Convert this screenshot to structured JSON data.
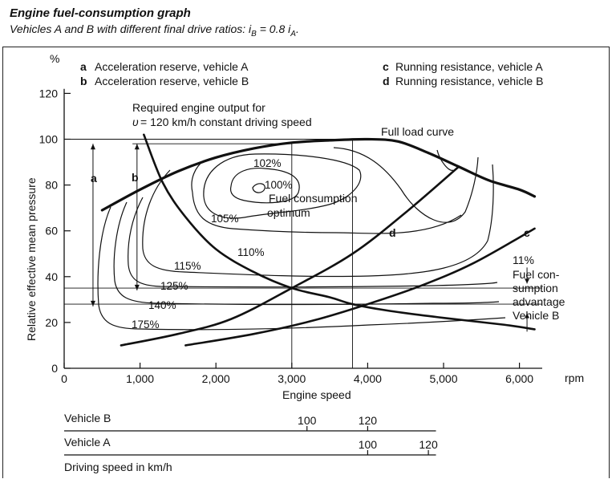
{
  "header": {
    "title": "Engine fuel-consumption graph",
    "subtitle_prefix": "Vehicles A and B with different final drive ratios: ",
    "subtitle_formula": "i",
    "subtitle_sub1": "B",
    "subtitle_eq": " = 0.8 i",
    "subtitle_sub2": "A",
    "subtitle_end": "."
  },
  "legend": {
    "a": {
      "key": "a",
      "text": "Acceleration reserve, vehicle A"
    },
    "b": {
      "key": "b",
      "text": "Acceleration reserve, vehicle B"
    },
    "c": {
      "key": "c",
      "text": "Running resistance, vehicle A"
    },
    "d": {
      "key": "d",
      "text": "Running resistance, vehicle B"
    }
  },
  "annotations": {
    "required_line1": "Required engine output for",
    "required_v": "υ",
    "required_line2": " = 120 km/h constant driving speed",
    "full_load": "Full load curve",
    "optimum_line1": "100%",
    "optimum_line2": "Fuel consumption",
    "optimum_line3": "optimum",
    "advantage_line1": "11%",
    "advantage_line2": "Fuel con-",
    "advantage_line3": "sumption",
    "advantage_line4": "advantage",
    "advantage_line5": "Vehicle B",
    "marker_a": "a",
    "marker_b": "b",
    "marker_c": "c",
    "marker_d": "d"
  },
  "contours": {
    "c102": "102%",
    "c105": "105%",
    "c110": "110%",
    "c115": "115%",
    "c125": "125%",
    "c140": "140%",
    "c175": "175%"
  },
  "speed_scales": {
    "vehicle_b": {
      "label": "Vehicle B",
      "ticks": [
        "100",
        "120"
      ],
      "rpm": [
        3200,
        4000
      ]
    },
    "vehicle_a": {
      "label": "Vehicle A",
      "ticks": [
        "100",
        "120"
      ],
      "rpm": [
        4000,
        4800
      ]
    },
    "caption": "Driving speed in km/h"
  },
  "chart_data": {
    "type": "line",
    "title": "Engine fuel-consumption graph",
    "xlabel": "Engine speed",
    "ylabel": "Relative effective mean pressure",
    "x_unit": "rpm",
    "y_unit": "%",
    "xlim": [
      0,
      6500
    ],
    "ylim": [
      0,
      130
    ],
    "x_ticks": [
      0,
      1000,
      2000,
      3000,
      4000,
      5000,
      6000
    ],
    "x_tick_labels": [
      "0",
      "1,000",
      "2,000",
      "3,000",
      "4,000",
      "5,000",
      "6,000"
    ],
    "y_ticks": [
      0,
      20,
      40,
      60,
      80,
      100,
      120
    ],
    "y_tick_labels": [
      "0",
      "20",
      "40",
      "60",
      "80",
      "100",
      "120"
    ],
    "series": [
      {
        "name": "Full load curve",
        "points": [
          [
            500,
            69
          ],
          [
            1000,
            78
          ],
          [
            1500,
            86
          ],
          [
            2000,
            92
          ],
          [
            2500,
            96
          ],
          [
            3000,
            98.5
          ],
          [
            3500,
            99.5
          ],
          [
            4000,
            100
          ],
          [
            4400,
            99
          ],
          [
            4800,
            94
          ],
          [
            5200,
            88
          ],
          [
            5600,
            82
          ],
          [
            6000,
            78
          ],
          [
            6200,
            75
          ]
        ]
      },
      {
        "name": "Running resistance, vehicle A",
        "points": [
          [
            1600,
            10
          ],
          [
            2500,
            15
          ],
          [
            3300,
            21
          ],
          [
            4000,
            28
          ],
          [
            4700,
            36
          ],
          [
            5400,
            46
          ],
          [
            6200,
            61
          ]
        ]
      },
      {
        "name": "Running resistance, vehicle B",
        "points": [
          [
            750,
            10
          ],
          [
            1500,
            15
          ],
          [
            2200,
            21.5
          ],
          [
            3000,
            35
          ],
          [
            3800,
            50
          ],
          [
            4500,
            68
          ],
          [
            5200,
            88
          ]
        ]
      },
      {
        "name": "Required engine output for 120 km/h",
        "points": [
          [
            1050,
            102
          ],
          [
            1300,
            81
          ],
          [
            1600,
            66
          ],
          [
            2000,
            52
          ],
          [
            2500,
            42
          ],
          [
            3000,
            35
          ],
          [
            3500,
            31
          ],
          [
            3800,
            28
          ],
          [
            4300,
            25
          ],
          [
            5000,
            22
          ],
          [
            5800,
            19
          ],
          [
            6200,
            17
          ]
        ]
      }
    ],
    "iso_consumption_contours": [
      {
        "label": "100%",
        "center": [
          2600,
          79
        ]
      },
      {
        "label": "102%"
      },
      {
        "label": "105%"
      },
      {
        "label": "110%"
      },
      {
        "label": "115%"
      },
      {
        "label": "125%"
      },
      {
        "label": "140%"
      },
      {
        "label": "175%"
      }
    ],
    "markers": [
      {
        "name": "a",
        "x": 380,
        "y_range": [
          27,
          98
        ]
      },
      {
        "name": "b",
        "x": 960,
        "y_range": [
          34,
          98
        ]
      }
    ],
    "operating_points": [
      {
        "vehicle": "B",
        "rpm": 3000,
        "pressure": 35
      },
      {
        "vehicle": "A",
        "rpm": 3800,
        "pressure": 28
      }
    ]
  }
}
